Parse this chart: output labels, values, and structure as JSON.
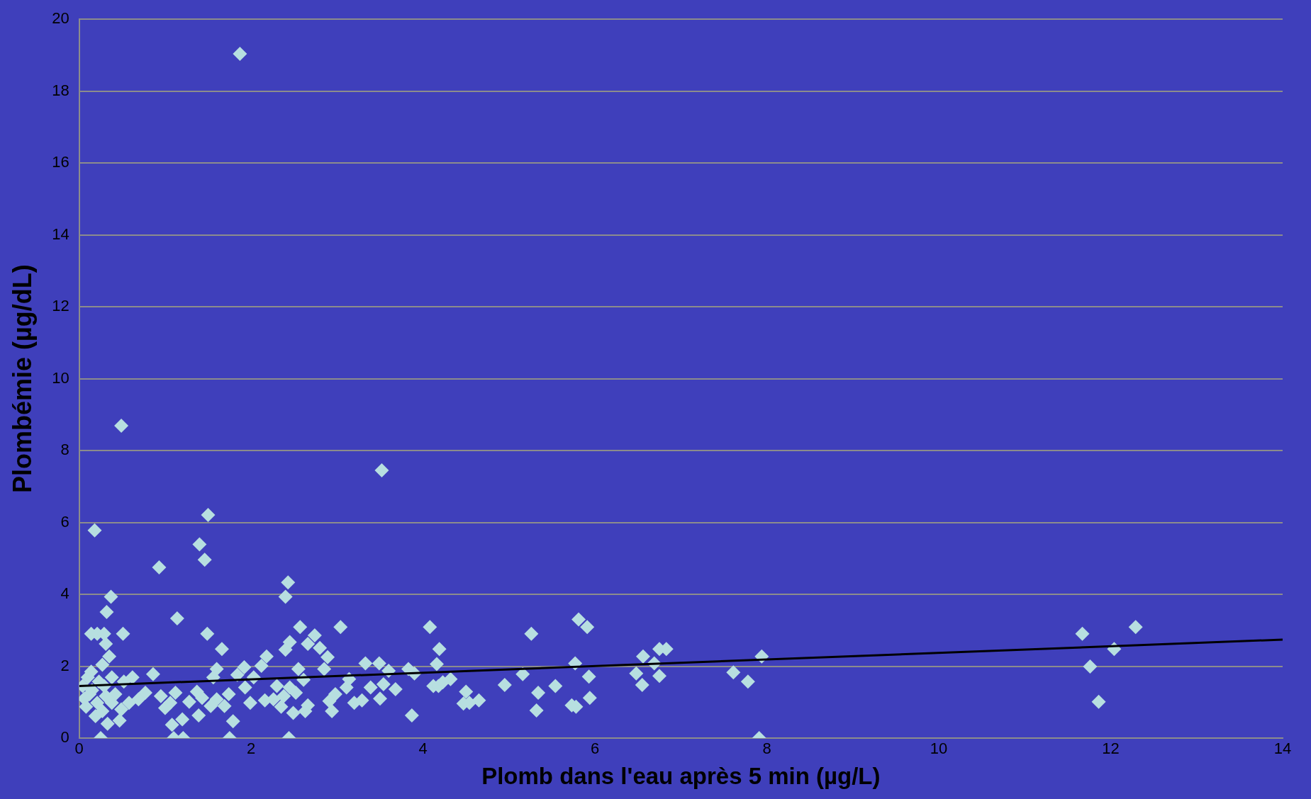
{
  "chart_data": {
    "type": "scatter",
    "xlabel": "Plomb dans l'eau après 5 min (µg/L)",
    "ylabel": "Plombémie (µg/dL)",
    "xlim": [
      0,
      14
    ],
    "xticks": [
      0,
      2,
      4,
      6,
      8,
      10,
      12,
      14
    ],
    "ylim": [
      0,
      20
    ],
    "yticks": [
      0,
      2,
      4,
      6,
      8,
      10,
      12,
      14,
      16,
      18,
      20
    ],
    "grid": "y",
    "legend": false,
    "series": [
      {
        "marker": "diamond",
        "color": "#b7dfe0",
        "x": [
          1.87,
          0.49,
          3.52,
          1.5,
          0.18,
          1.4,
          1.46,
          0.93,
          2.43,
          2.4,
          0.37,
          1.14,
          0.32,
          5.81,
          5.91,
          3.04,
          4.08,
          2.57,
          12.29,
          11.67,
          5.26,
          1.49,
          0.51,
          0.14,
          0.21,
          0.29,
          12.04,
          11.76,
          11.86,
          7.94,
          7.91,
          7.61,
          7.78,
          6.56,
          6.75,
          6.83,
          6.69,
          6.48,
          6.75,
          6.55,
          5.93,
          5.94,
          5.77,
          5.73,
          5.78,
          5.54,
          5.34,
          5.32,
          5.16,
          4.95,
          4.65,
          4.5,
          4.47,
          4.54,
          4.32,
          4.19,
          4.16,
          4.12,
          4.18,
          4.23,
          3.87,
          3.9,
          3.83,
          3.68,
          3.6,
          3.54,
          3.49,
          3.33,
          3.5,
          3.39,
          3.29,
          3.2,
          3.14,
          3.11,
          2.98,
          2.91,
          2.94,
          2.89,
          2.85,
          2.8,
          2.74,
          2.66,
          2.63,
          2.66,
          2.55,
          2.61,
          2.52,
          2.49,
          2.45,
          2.4,
          2.44,
          2.45,
          2.38,
          2.35,
          2.3,
          2.26,
          2.16,
          2.18,
          2.12,
          2.03,
          1.99,
          1.93,
          1.92,
          1.84,
          1.79,
          1.75,
          1.74,
          1.69,
          1.66,
          1.6,
          1.56,
          1.6,
          1.53,
          1.43,
          1.39,
          1.37,
          1.28,
          1.2,
          1.21,
          1.1,
          1.08,
          1.12,
          1.06,
          1.0,
          0.95,
          0.86,
          0.77,
          0.69,
          0.62,
          0.58,
          0.49,
          0.47,
          0.42,
          0.52,
          0.38,
          0.35,
          0.31,
          0.27,
          0.25,
          0.33,
          0.27,
          0.21,
          0.15,
          0.1,
          0.06,
          0.14,
          0.19,
          0.04,
          0.08,
          0.23,
          0.31,
          0.38,
          0.29,
          0.12
        ],
        "values": [
          19.04,
          8.69,
          7.45,
          6.21,
          5.78,
          5.39,
          4.96,
          4.75,
          4.33,
          3.93,
          3.93,
          3.33,
          3.51,
          3.3,
          3.09,
          3.09,
          3.09,
          3.09,
          3.09,
          2.9,
          2.9,
          2.9,
          2.9,
          2.9,
          2.9,
          2.9,
          2.48,
          1.99,
          1.01,
          2.27,
          0,
          1.83,
          1.57,
          2.27,
          2.48,
          2.48,
          2.08,
          1.8,
          1.73,
          1.48,
          1.71,
          1.12,
          2.08,
          0.91,
          0.87,
          1.45,
          1.26,
          0.77,
          1.78,
          1.48,
          1.05,
          1.29,
          0.96,
          0.98,
          1.64,
          2.48,
          2.06,
          1.45,
          1.45,
          1.55,
          0.63,
          1.8,
          1.92,
          1.36,
          1.87,
          1.5,
          2.08,
          2.08,
          1.1,
          1.41,
          1.05,
          0.98,
          1.64,
          1.41,
          1.22,
          1.03,
          0.75,
          2.25,
          1.92,
          2.51,
          2.86,
          2.62,
          0.75,
          0.91,
          1.92,
          1.62,
          1.26,
          0.7,
          2.67,
          2.46,
          0,
          1.41,
          1.17,
          0.87,
          1.45,
          1.08,
          1.05,
          2.27,
          2.01,
          1.69,
          0.98,
          1.41,
          1.97,
          1.76,
          0.47,
          0,
          1.22,
          0.89,
          2.48,
          1.92,
          1.69,
          1.08,
          0.89,
          1.12,
          0.63,
          1.29,
          1.01,
          0.52,
          0,
          0,
          0.37,
          1.26,
          0.98,
          0.84,
          1.17,
          1.78,
          1.26,
          1.08,
          1.69,
          0.98,
          0.8,
          0.49,
          1.22,
          1.57,
          1.69,
          2.27,
          2.62,
          2.04,
          0,
          0.4,
          0.75,
          0.98,
          1.33,
          1.69,
          1.1,
          1.85,
          0.61,
          1.45,
          0.87,
          1.57,
          1.17,
          0.98,
          1.45,
          1.22
        ]
      },
      {
        "type": "line",
        "marker": "none",
        "color": "#000000",
        "x": [
          0,
          14
        ],
        "values": [
          1.45,
          2.74
        ]
      }
    ]
  }
}
